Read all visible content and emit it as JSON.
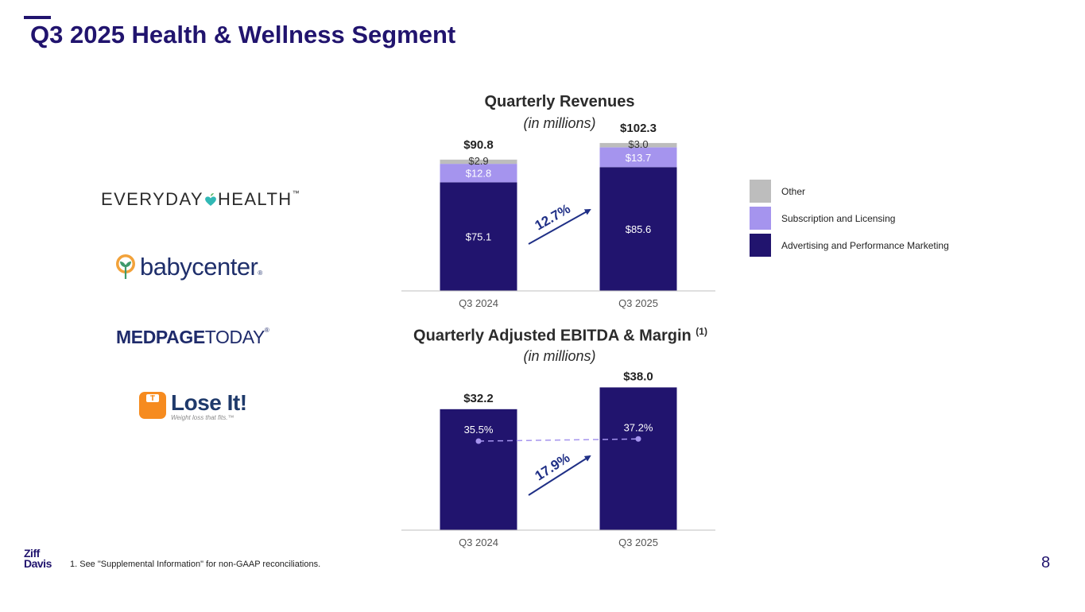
{
  "slide": {
    "title": "Q3 2025 Health & Wellness Segment",
    "footnote": "1.   See \"Supplemental Information\" for non-GAAP reconciliations.",
    "page_number": "8",
    "company_logo": [
      "Ziff",
      "Davis"
    ]
  },
  "brands": {
    "everyday_health": {
      "part1": "EVERYDAY",
      "part2": "HEALTH",
      "mark": "™"
    },
    "babycenter": {
      "word": "babycenter",
      "mark": "®"
    },
    "medpage_today": {
      "part1": "MEDPAGE",
      "part2": "TODAY",
      "mark": "®"
    },
    "lose_it": {
      "word": "Lose It!",
      "tagline": "Weight loss that fits.™"
    }
  },
  "colors": {
    "other": "#bdbdbd",
    "subscription": "#a594ee",
    "advertising": "#21146e",
    "growth_arrow": "#1f2f86",
    "margin_line": "#a594ee"
  },
  "chart_data": [
    {
      "type": "bar",
      "stacked": true,
      "title": "Quarterly Revenues",
      "subtitle": "(in millions)",
      "categories": [
        "Q3 2024",
        "Q3 2025"
      ],
      "series": [
        {
          "name": "Advertising and Performance Marketing",
          "values": [
            75.1,
            85.6
          ],
          "labels": [
            "$75.1",
            "$85.6"
          ]
        },
        {
          "name": "Subscription and Licensing",
          "values": [
            12.8,
            13.7
          ],
          "labels": [
            "$12.8",
            "$13.7"
          ]
        },
        {
          "name": "Other",
          "values": [
            2.9,
            3.0
          ],
          "labels": [
            "$2.9",
            "$3.0"
          ]
        }
      ],
      "totals": [
        90.8,
        102.3
      ],
      "total_labels": [
        "$90.8",
        "$102.3"
      ],
      "growth_label": "12.7%",
      "ylim": [
        0,
        105
      ],
      "legend": "right"
    },
    {
      "type": "bar",
      "title": "Quarterly Adjusted EBITDA & Margin",
      "title_note": "(1)",
      "subtitle": "(in millions)",
      "categories": [
        "Q3 2024",
        "Q3 2025"
      ],
      "values": [
        32.2,
        38.0
      ],
      "value_labels": [
        "$32.2",
        "$38.0"
      ],
      "margin": {
        "values": [
          35.5,
          37.2
        ],
        "labels": [
          "35.5%",
          "37.2%"
        ]
      },
      "growth_label": "17.9%",
      "ylim": [
        0,
        38.3
      ]
    }
  ]
}
